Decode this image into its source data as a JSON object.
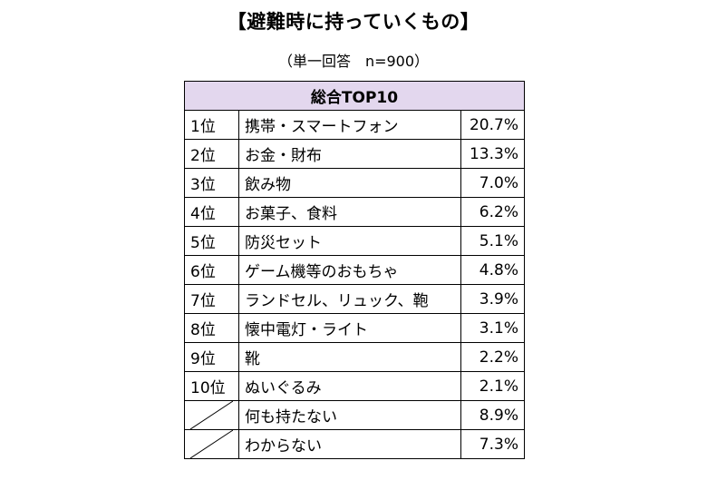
{
  "title": "【避難時に持っていくもの】",
  "subtitle": "（単一回答　n=900）",
  "table": {
    "header": "総合TOP10",
    "rows": [
      {
        "rank": "1位",
        "item": "携帯・スマートフォン",
        "pct": "20.7%"
      },
      {
        "rank": "2位",
        "item": "お金・財布",
        "pct": "13.3%"
      },
      {
        "rank": "3位",
        "item": "飲み物",
        "pct": "7.0%"
      },
      {
        "rank": "4位",
        "item": "お菓子、食料",
        "pct": "6.2%"
      },
      {
        "rank": "5位",
        "item": "防災セット",
        "pct": "5.1%"
      },
      {
        "rank": "6位",
        "item": "ゲーム機等のおもちゃ",
        "pct": "4.8%"
      },
      {
        "rank": "7位",
        "item": "ランドセル、リュック、鞄",
        "pct": "3.9%"
      },
      {
        "rank": "8位",
        "item": "懐中電灯・ライト",
        "pct": "3.1%"
      },
      {
        "rank": "9位",
        "item": "靴",
        "pct": "2.2%"
      },
      {
        "rank": "10位",
        "item": "ぬいぐるみ",
        "pct": "2.1%"
      },
      {
        "rank": "",
        "item": "何も持たない",
        "pct": "8.9%"
      },
      {
        "rank": "",
        "item": "わからない",
        "pct": "7.3%"
      }
    ]
  }
}
